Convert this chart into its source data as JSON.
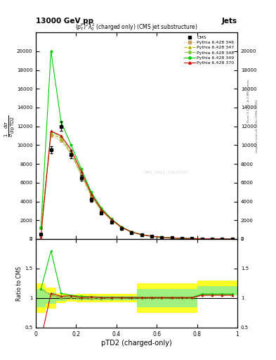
{
  "title_main": "13000 GeV pp",
  "title_right": "Jets",
  "plot_title": "(p$_{T}^{P}$)$^{2}\\lambda_{0}^{2}$ (charged only) (CMS jet substructure)",
  "xlabel": "pTD2 (charged-only)",
  "ylabel_ratio": "Ratio to CMS",
  "watermark": "CMS_2021_I1920187",
  "rivet_label": "Rivet 3.1.10, ≥ 2.8M events",
  "arxiv_label": "mcplots.cern.ch [arXiv:1306.3436]",
  "x_values": [
    0.025,
    0.075,
    0.125,
    0.175,
    0.225,
    0.275,
    0.325,
    0.375,
    0.425,
    0.475,
    0.525,
    0.575,
    0.625,
    0.675,
    0.725,
    0.775,
    0.825,
    0.875,
    0.925,
    0.975
  ],
  "x_edges": [
    0.0,
    0.05,
    0.1,
    0.15,
    0.2,
    0.25,
    0.3,
    0.35,
    0.4,
    0.45,
    0.5,
    0.55,
    0.6,
    0.65,
    0.7,
    0.75,
    0.8,
    0.85,
    0.9,
    0.95,
    1.0
  ],
  "cms_y": [
    500,
    9500,
    12000,
    9000,
    6500,
    4200,
    2800,
    1800,
    1100,
    650,
    420,
    270,
    170,
    110,
    70,
    45,
    30,
    20,
    12,
    6
  ],
  "cms_errors": [
    100,
    400,
    500,
    400,
    300,
    200,
    130,
    90,
    55,
    35,
    22,
    14,
    9,
    6,
    4,
    3,
    2,
    1,
    1,
    1
  ],
  "py346_y": [
    1200,
    11000,
    10500,
    9000,
    6800,
    4500,
    3000,
    2000,
    1200,
    720,
    450,
    280,
    175,
    112,
    72,
    46,
    30,
    20,
    13,
    7
  ],
  "py347_y": [
    1200,
    11200,
    10700,
    9100,
    6900,
    4600,
    3050,
    2030,
    1220,
    730,
    455,
    283,
    177,
    113,
    73,
    47,
    31,
    20,
    13,
    7
  ],
  "py348_y": [
    1200,
    11400,
    10900,
    9200,
    7000,
    4700,
    3100,
    2060,
    1240,
    740,
    460,
    286,
    179,
    115,
    74,
    48,
    32,
    21,
    14,
    7
  ],
  "py349_y": [
    1200,
    20000,
    12500,
    10000,
    7500,
    5000,
    3300,
    2150,
    1300,
    770,
    480,
    298,
    185,
    118,
    76,
    49,
    33,
    22,
    14,
    7
  ],
  "py370_y": [
    200,
    11500,
    11000,
    9500,
    7200,
    4800,
    3150,
    2080,
    1250,
    750,
    465,
    289,
    180,
    115,
    74,
    47,
    31,
    21,
    13,
    7
  ],
  "color_346": "#c8a060",
  "color_347": "#b0b000",
  "color_348": "#80c840",
  "color_349": "#00cc00",
  "color_370": "#cc0000",
  "ylim_main": [
    0,
    22000
  ],
  "ylim_ratio": [
    0.5,
    2.0
  ],
  "xlim": [
    0.0,
    1.0
  ],
  "yticks_main": [
    0,
    2000,
    4000,
    6000,
    8000,
    10000,
    12000,
    14000,
    16000,
    18000,
    20000
  ],
  "ratio_x_edges": [
    0.0,
    0.05,
    0.1,
    0.15,
    0.2,
    0.25,
    0.3,
    0.35,
    0.4,
    0.45,
    0.5,
    0.55,
    0.6,
    0.65,
    0.7,
    0.75,
    0.8,
    0.85,
    0.9,
    0.95,
    1.0
  ],
  "band_yellow_low": [
    0.75,
    0.82,
    0.92,
    0.94,
    0.93,
    0.93,
    0.93,
    0.93,
    0.93,
    0.93,
    0.75,
    0.75,
    0.75,
    0.75,
    0.75,
    0.75,
    1.05,
    1.05,
    1.05,
    1.05,
    1.05
  ],
  "band_yellow_high": [
    1.25,
    1.18,
    1.08,
    1.06,
    1.07,
    1.07,
    1.07,
    1.07,
    1.07,
    1.07,
    1.25,
    1.25,
    1.25,
    1.25,
    1.25,
    1.25,
    1.3,
    1.3,
    1.3,
    1.3,
    1.3
  ],
  "band_green_low": [
    0.85,
    0.9,
    0.95,
    0.97,
    0.96,
    0.96,
    0.96,
    0.96,
    0.96,
    0.96,
    0.85,
    0.85,
    0.85,
    0.85,
    0.85,
    0.85,
    1.05,
    1.05,
    1.05,
    1.05,
    1.05
  ],
  "band_green_high": [
    1.15,
    1.1,
    1.05,
    1.03,
    1.04,
    1.04,
    1.04,
    1.04,
    1.04,
    1.04,
    1.15,
    1.15,
    1.15,
    1.15,
    1.15,
    1.15,
    1.2,
    1.2,
    1.2,
    1.2,
    1.2
  ],
  "bg_color": "#ffffff"
}
